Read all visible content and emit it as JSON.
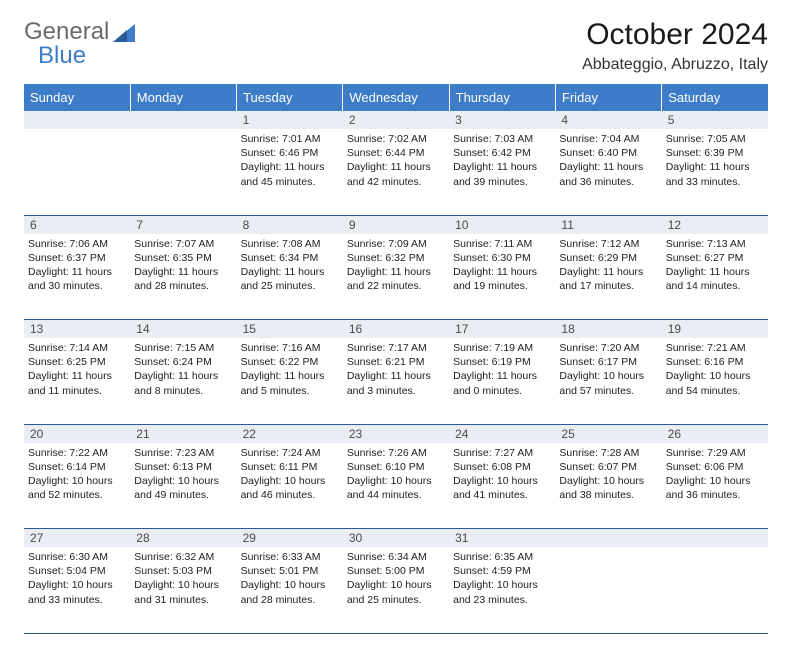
{
  "logo": {
    "text1": "General",
    "text2": "Blue"
  },
  "title": "October 2024",
  "subtitle": "Abbateggio, Abruzzo, Italy",
  "colors": {
    "header_bg": "#3d7cc9",
    "header_fg": "#ffffff",
    "daynum_bg": "#e9eef4",
    "row_border": "#2a5a9a",
    "logo_grey": "#6a6a6a",
    "logo_blue": "#3d7cc9"
  },
  "font": {
    "family": "Arial",
    "body_size_pt": 8,
    "title_size_pt": 22,
    "subtitle_size_pt": 12,
    "header_size_pt": 10
  },
  "weekdays": [
    "Sunday",
    "Monday",
    "Tuesday",
    "Wednesday",
    "Thursday",
    "Friday",
    "Saturday"
  ],
  "month_start_weekday": 2,
  "days_in_month": 31,
  "days": {
    "1": {
      "sunrise": "7:01 AM",
      "sunset": "6:46 PM",
      "daylight": "11 hours and 45 minutes."
    },
    "2": {
      "sunrise": "7:02 AM",
      "sunset": "6:44 PM",
      "daylight": "11 hours and 42 minutes."
    },
    "3": {
      "sunrise": "7:03 AM",
      "sunset": "6:42 PM",
      "daylight": "11 hours and 39 minutes."
    },
    "4": {
      "sunrise": "7:04 AM",
      "sunset": "6:40 PM",
      "daylight": "11 hours and 36 minutes."
    },
    "5": {
      "sunrise": "7:05 AM",
      "sunset": "6:39 PM",
      "daylight": "11 hours and 33 minutes."
    },
    "6": {
      "sunrise": "7:06 AM",
      "sunset": "6:37 PM",
      "daylight": "11 hours and 30 minutes."
    },
    "7": {
      "sunrise": "7:07 AM",
      "sunset": "6:35 PM",
      "daylight": "11 hours and 28 minutes."
    },
    "8": {
      "sunrise": "7:08 AM",
      "sunset": "6:34 PM",
      "daylight": "11 hours and 25 minutes."
    },
    "9": {
      "sunrise": "7:09 AM",
      "sunset": "6:32 PM",
      "daylight": "11 hours and 22 minutes."
    },
    "10": {
      "sunrise": "7:11 AM",
      "sunset": "6:30 PM",
      "daylight": "11 hours and 19 minutes."
    },
    "11": {
      "sunrise": "7:12 AM",
      "sunset": "6:29 PM",
      "daylight": "11 hours and 17 minutes."
    },
    "12": {
      "sunrise": "7:13 AM",
      "sunset": "6:27 PM",
      "daylight": "11 hours and 14 minutes."
    },
    "13": {
      "sunrise": "7:14 AM",
      "sunset": "6:25 PM",
      "daylight": "11 hours and 11 minutes."
    },
    "14": {
      "sunrise": "7:15 AM",
      "sunset": "6:24 PM",
      "daylight": "11 hours and 8 minutes."
    },
    "15": {
      "sunrise": "7:16 AM",
      "sunset": "6:22 PM",
      "daylight": "11 hours and 5 minutes."
    },
    "16": {
      "sunrise": "7:17 AM",
      "sunset": "6:21 PM",
      "daylight": "11 hours and 3 minutes."
    },
    "17": {
      "sunrise": "7:19 AM",
      "sunset": "6:19 PM",
      "daylight": "11 hours and 0 minutes."
    },
    "18": {
      "sunrise": "7:20 AM",
      "sunset": "6:17 PM",
      "daylight": "10 hours and 57 minutes."
    },
    "19": {
      "sunrise": "7:21 AM",
      "sunset": "6:16 PM",
      "daylight": "10 hours and 54 minutes."
    },
    "20": {
      "sunrise": "7:22 AM",
      "sunset": "6:14 PM",
      "daylight": "10 hours and 52 minutes."
    },
    "21": {
      "sunrise": "7:23 AM",
      "sunset": "6:13 PM",
      "daylight": "10 hours and 49 minutes."
    },
    "22": {
      "sunrise": "7:24 AM",
      "sunset": "6:11 PM",
      "daylight": "10 hours and 46 minutes."
    },
    "23": {
      "sunrise": "7:26 AM",
      "sunset": "6:10 PM",
      "daylight": "10 hours and 44 minutes."
    },
    "24": {
      "sunrise": "7:27 AM",
      "sunset": "6:08 PM",
      "daylight": "10 hours and 41 minutes."
    },
    "25": {
      "sunrise": "7:28 AM",
      "sunset": "6:07 PM",
      "daylight": "10 hours and 38 minutes."
    },
    "26": {
      "sunrise": "7:29 AM",
      "sunset": "6:06 PM",
      "daylight": "10 hours and 36 minutes."
    },
    "27": {
      "sunrise": "6:30 AM",
      "sunset": "5:04 PM",
      "daylight": "10 hours and 33 minutes."
    },
    "28": {
      "sunrise": "6:32 AM",
      "sunset": "5:03 PM",
      "daylight": "10 hours and 31 minutes."
    },
    "29": {
      "sunrise": "6:33 AM",
      "sunset": "5:01 PM",
      "daylight": "10 hours and 28 minutes."
    },
    "30": {
      "sunrise": "6:34 AM",
      "sunset": "5:00 PM",
      "daylight": "10 hours and 25 minutes."
    },
    "31": {
      "sunrise": "6:35 AM",
      "sunset": "4:59 PM",
      "daylight": "10 hours and 23 minutes."
    }
  },
  "labels": {
    "sunrise": "Sunrise:",
    "sunset": "Sunset:",
    "daylight": "Daylight:"
  }
}
